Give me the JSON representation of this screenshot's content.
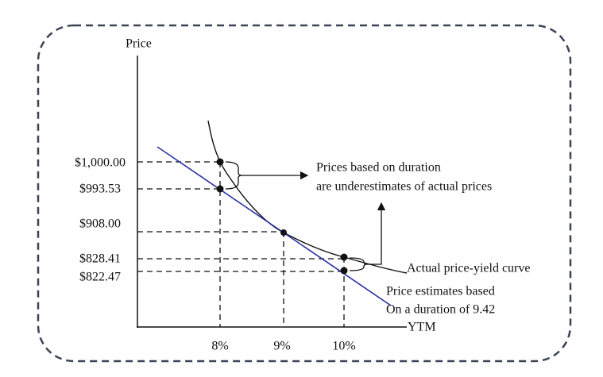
{
  "axes": {
    "y_title": "Price",
    "x_title": "YTM"
  },
  "y_labels": [
    "$1,000.00",
    "$993.53",
    "$908.00",
    "$828.41",
    "$822.47"
  ],
  "x_labels": [
    "8%",
    "9%",
    "10%"
  ],
  "annotations": {
    "duration_note": [
      "Prices based on duration",
      "are underestimates of actual prices"
    ],
    "curve_label": "Actual price-yield curve",
    "estimate_label": [
      "Price estimates based",
      "On a duration of 9.42"
    ]
  }
}
